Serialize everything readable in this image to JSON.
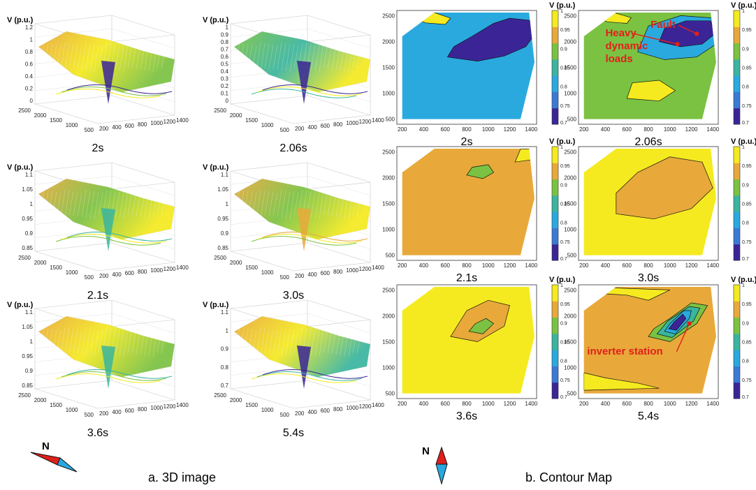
{
  "figure": {
    "caption_3d": "a. 3D image",
    "caption_contour": "b. Contour Map",
    "compass_label": "N"
  },
  "colors": {
    "c070": "#3b2596",
    "c075": "#3a7ad6",
    "c080": "#2aa9df",
    "c085": "#3ab59e",
    "c090": "#7bc242",
    "c095": "#e8a93a",
    "c100": "#f5ea1f",
    "contour": "#111111",
    "annotation": "#e0201b"
  },
  "chart_data": [
    {
      "type": "surface3d",
      "time_label": "2s",
      "zlabel": "V (p.u.)",
      "z_ticks": [
        "1.2",
        "1",
        "0.8",
        "0.6",
        "0.4",
        "0.2",
        "0"
      ],
      "x_ticks": [
        "200",
        "400",
        "600",
        "800",
        "1000",
        "1200",
        "1400"
      ],
      "y_ticks": [
        "2500",
        "2000",
        "1500",
        "1000",
        "500"
      ],
      "surface_colors": [
        "c095",
        "c100",
        "c090",
        "c070"
      ]
    },
    {
      "type": "surface3d",
      "time_label": "2.06s",
      "zlabel": "V (p.u.)",
      "z_ticks": [
        "1",
        "0.9",
        "0.8",
        "0.7",
        "0.6",
        "0.5",
        "0.4",
        "0.3",
        "0.2",
        "0.1",
        "0"
      ],
      "x_ticks": [
        "200",
        "400",
        "600",
        "800",
        "1000",
        "1200",
        "1400"
      ],
      "y_ticks": [
        "2500",
        "2000",
        "1500",
        "1000",
        "500"
      ],
      "surface_colors": [
        "c090",
        "c085",
        "c100",
        "c070"
      ]
    },
    {
      "type": "surface3d",
      "time_label": "2.1s",
      "zlabel": "V (p.u.)",
      "z_ticks": [
        "1.1",
        "1.05",
        "1",
        "0.95",
        "0.9",
        "0.85"
      ],
      "x_ticks": [
        "200",
        "400",
        "600",
        "800",
        "1000",
        "1200",
        "1400"
      ],
      "y_ticks": [
        "2500",
        "2000",
        "1500",
        "1000",
        "500"
      ],
      "surface_colors": [
        "c095",
        "c090",
        "c100",
        "c085"
      ]
    },
    {
      "type": "surface3d",
      "time_label": "3.0s",
      "zlabel": "V (p.u.)",
      "z_ticks": [
        "1.1",
        "1.05",
        "1",
        "0.95",
        "0.9",
        "0.85"
      ],
      "x_ticks": [
        "200",
        "400",
        "600",
        "800",
        "1000",
        "1200",
        "1400"
      ],
      "y_ticks": [
        "2500",
        "2000",
        "1500",
        "1000",
        "500"
      ],
      "surface_colors": [
        "c095",
        "c090",
        "c100",
        "c095"
      ]
    },
    {
      "type": "surface3d",
      "time_label": "3.6s",
      "zlabel": "V (p.u.)",
      "z_ticks": [
        "1.1",
        "1.05",
        "1",
        "0.95",
        "0.9",
        "0.85"
      ],
      "x_ticks": [
        "200",
        "400",
        "600",
        "800",
        "1000",
        "1200",
        "1400"
      ],
      "y_ticks": [
        "2500",
        "2000",
        "1500",
        "1000",
        "500"
      ],
      "surface_colors": [
        "c095",
        "c100",
        "c090",
        "c085"
      ]
    },
    {
      "type": "surface3d",
      "time_label": "5.4s",
      "zlabel": "V (p.u.)",
      "z_ticks": [
        "1.1",
        "1",
        "0.9",
        "0.8",
        "0.7"
      ],
      "x_ticks": [
        "200",
        "400",
        "600",
        "800",
        "1000",
        "1200",
        "1400"
      ],
      "y_ticks": [
        "2500",
        "2000",
        "1500",
        "1000",
        "500"
      ],
      "surface_colors": [
        "c095",
        "c100",
        "c085",
        "c070"
      ]
    },
    {
      "type": "contour",
      "time_label": "2s",
      "colorbar_label": "V (p.u.)",
      "colorbar_ticks": [
        "1",
        "0.95",
        "0.9",
        "0.85",
        "0.8",
        "0.75",
        "0.7"
      ],
      "x_ticks": [
        "200",
        "400",
        "600",
        "800",
        "1000",
        "1200",
        "1400"
      ],
      "y_ticks": [
        "2500",
        "2000",
        "1500",
        "1000",
        "500"
      ],
      "xlim": [
        150,
        1450
      ],
      "ylim": [
        400,
        2600
      ],
      "base_level": "c080",
      "regions": [
        {
          "level": "c070",
          "points": [
            [
              620,
              1700
            ],
            [
              900,
              1620
            ],
            [
              1150,
              1720
            ],
            [
              1350,
              1900
            ],
            [
              1420,
              2100
            ],
            [
              1420,
              2400
            ],
            [
              1200,
              2450
            ],
            [
              1050,
              2350
            ],
            [
              850,
              2100
            ],
            [
              680,
              1900
            ]
          ]
        },
        {
          "level": "c100",
          "points": [
            [
              250,
              2480
            ],
            [
              420,
              2360
            ],
            [
              600,
              2330
            ],
            [
              650,
              2450
            ],
            [
              500,
              2560
            ],
            [
              300,
              2560
            ]
          ]
        }
      ],
      "annotations": []
    },
    {
      "type": "contour",
      "time_label": "2.06s",
      "colorbar_label": "V (p.u.)",
      "colorbar_ticks": [
        "1",
        "0.95",
        "0.9",
        "0.85",
        "0.8",
        "0.75",
        "0.7"
      ],
      "x_ticks": [
        "200",
        "400",
        "600",
        "800",
        "1000",
        "1200",
        "1400"
      ],
      "y_ticks": [
        "2500",
        "2000",
        "1500",
        "1000",
        "500"
      ],
      "xlim": [
        150,
        1450
      ],
      "ylim": [
        400,
        2600
      ],
      "base_level": "c090",
      "regions": [
        {
          "level": "c080",
          "points": [
            [
              700,
              1800
            ],
            [
              950,
              1650
            ],
            [
              1250,
              1700
            ],
            [
              1430,
              1950
            ],
            [
              1430,
              2450
            ],
            [
              1100,
              2500
            ],
            [
              800,
              2300
            ]
          ]
        },
        {
          "level": "c070",
          "points": [
            [
              900,
              2000
            ],
            [
              1100,
              1900
            ],
            [
              1300,
              1950
            ],
            [
              1420,
              2150
            ],
            [
              1380,
              2400
            ],
            [
              1150,
              2400
            ],
            [
              950,
              2250
            ]
          ]
        },
        {
          "level": "c100",
          "points": [
            [
              600,
              900
            ],
            [
              900,
              850
            ],
            [
              1050,
              1050
            ],
            [
              900,
              1250
            ],
            [
              650,
              1200
            ]
          ]
        },
        {
          "level": "c100",
          "points": [
            [
              250,
              2500
            ],
            [
              420,
              2380
            ],
            [
              600,
              2350
            ],
            [
              640,
              2460
            ],
            [
              480,
              2560
            ]
          ]
        }
      ],
      "annotations": [
        {
          "text": "Fault",
          "x": 820,
          "y": 2260,
          "target": [
            1250,
            2150
          ]
        },
        {
          "text": "Heavy",
          "x": 400,
          "y": 2100,
          "target": [
            1070,
            1950
          ]
        },
        {
          "text": "dynamic",
          "x": 400,
          "y": 1850,
          "target": null
        },
        {
          "text": "loads",
          "x": 400,
          "y": 1600,
          "target": null
        }
      ]
    },
    {
      "type": "contour",
      "time_label": "2.1s",
      "colorbar_label": "V (p.u.)",
      "colorbar_ticks": [
        "1",
        "0.95",
        "0.9",
        "0.85",
        "0.8",
        "0.75",
        "0.7"
      ],
      "x_ticks": [
        "200",
        "400",
        "600",
        "800",
        "1000",
        "1200",
        "1400"
      ],
      "y_ticks": [
        "2500",
        "2000",
        "1500",
        "1000",
        "500"
      ],
      "xlim": [
        150,
        1450
      ],
      "ylim": [
        400,
        2600
      ],
      "base_level": "c095",
      "regions": [
        {
          "level": "c090",
          "points": [
            [
              800,
              2050
            ],
            [
              950,
              1980
            ],
            [
              1050,
              2100
            ],
            [
              1000,
              2250
            ],
            [
              850,
              2200
            ]
          ]
        },
        {
          "level": "c100",
          "points": [
            [
              1250,
              2300
            ],
            [
              1420,
              2350
            ],
            [
              1420,
              2550
            ],
            [
              1300,
              2550
            ]
          ]
        }
      ],
      "annotations": []
    },
    {
      "type": "contour",
      "time_label": "3.0s",
      "colorbar_label": "V (p.u.)",
      "colorbar_ticks": [
        "1",
        "0.95",
        "0.9",
        "0.85",
        "0.8",
        "0.75",
        "0.7"
      ],
      "x_ticks": [
        "200",
        "400",
        "600",
        "800",
        "1000",
        "1200",
        "1400"
      ],
      "y_ticks": [
        "2500",
        "2000",
        "1500",
        "1000",
        "500"
      ],
      "xlim": [
        150,
        1450
      ],
      "ylim": [
        400,
        2600
      ],
      "base_level": "c100",
      "regions": [
        {
          "level": "c095",
          "points": [
            [
              500,
              1300
            ],
            [
              850,
              1200
            ],
            [
              1200,
              1400
            ],
            [
              1400,
              1800
            ],
            [
              1300,
              2300
            ],
            [
              1000,
              2400
            ],
            [
              700,
              2100
            ],
            [
              500,
              1700
            ]
          ]
        }
      ],
      "annotations": []
    },
    {
      "type": "contour",
      "time_label": "3.6s",
      "colorbar_label": "V (p.u.)",
      "colorbar_ticks": [
        "1",
        "0.95",
        "0.9",
        "0.85",
        "0.8",
        "0.75",
        "0.7"
      ],
      "x_ticks": [
        "200",
        "400",
        "600",
        "800",
        "1000",
        "1200",
        "1400"
      ],
      "y_ticks": [
        "2500",
        "2000",
        "1500",
        "1000",
        "500"
      ],
      "xlim": [
        150,
        1450
      ],
      "ylim": [
        400,
        2600
      ],
      "base_level": "c100",
      "regions": [
        {
          "level": "c095",
          "points": [
            [
              650,
              1600
            ],
            [
              900,
              1500
            ],
            [
              1150,
              1800
            ],
            [
              1200,
              2200
            ],
            [
              1000,
              2300
            ],
            [
              800,
              2100
            ]
          ]
        },
        {
          "level": "c090",
          "points": [
            [
              820,
              1700
            ],
            [
              950,
              1650
            ],
            [
              1050,
              1850
            ],
            [
              980,
              1950
            ],
            [
              880,
              1850
            ]
          ]
        }
      ],
      "annotations": []
    },
    {
      "type": "contour",
      "time_label": "5.4s",
      "colorbar_label": "V (p.u.)",
      "colorbar_ticks": [
        "1",
        "0.95",
        "0.9",
        "0.85",
        "0.8",
        "0.75",
        "0.7"
      ],
      "x_ticks": [
        "200",
        "400",
        "600",
        "800",
        "1000",
        "1200",
        "1400"
      ],
      "y_ticks": [
        "2500",
        "2000",
        "1500",
        "1000",
        "500"
      ],
      "xlim": [
        150,
        1450
      ],
      "ylim": [
        400,
        2600
      ],
      "base_level": "c095",
      "regions": [
        {
          "level": "c100",
          "points": [
            [
              200,
              2450
            ],
            [
              600,
              2400
            ],
            [
              800,
              2300
            ],
            [
              1000,
              2500
            ],
            [
              200,
              2560
            ]
          ]
        },
        {
          "level": "c100",
          "points": [
            [
              200,
              900
            ],
            [
              400,
              800
            ],
            [
              700,
              700
            ],
            [
              900,
              600
            ],
            [
              200,
              560
            ]
          ]
        },
        {
          "level": "c090",
          "points": [
            [
              800,
              1600
            ],
            [
              1000,
              1500
            ],
            [
              1250,
              1850
            ],
            [
              1350,
              2200
            ],
            [
              1200,
              2250
            ],
            [
              1000,
              1950
            ],
            [
              850,
              1750
            ]
          ]
        },
        {
          "level": "c085",
          "points": [
            [
              880,
              1650
            ],
            [
              1020,
              1580
            ],
            [
              1220,
              1900
            ],
            [
              1280,
              2150
            ],
            [
              1180,
              2180
            ],
            [
              980,
              1900
            ]
          ]
        },
        {
          "level": "c080",
          "points": [
            [
              950,
              1700
            ],
            [
              1050,
              1650
            ],
            [
              1180,
              1950
            ],
            [
              1200,
              2100
            ],
            [
              1130,
              2100
            ],
            [
              1000,
              1850
            ]
          ]
        },
        {
          "level": "c070",
          "points": [
            [
              990,
              1750
            ],
            [
              1060,
              1720
            ],
            [
              1150,
              1950
            ],
            [
              1120,
              2030
            ],
            [
              1040,
              1880
            ]
          ]
        }
      ],
      "annotations": [
        {
          "text": "inverter station",
          "x": 230,
          "y": 1250,
          "target": [
            1180,
            1850
          ]
        }
      ]
    }
  ]
}
